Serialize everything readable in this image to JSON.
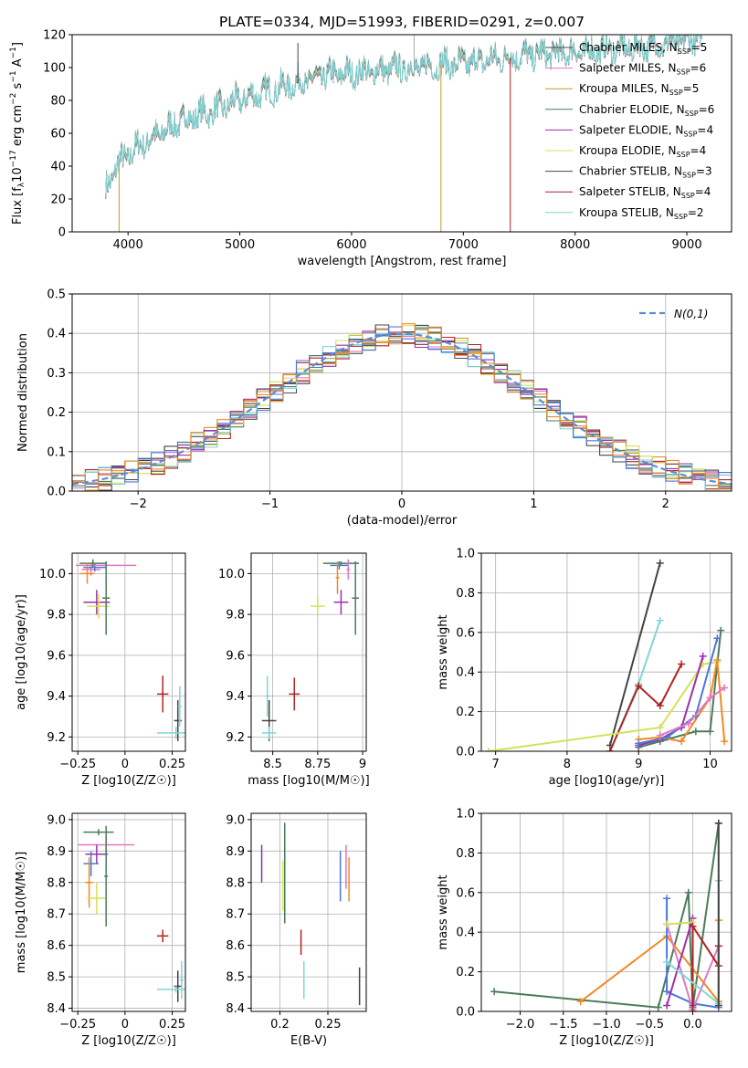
{
  "figure": {
    "title": "PLATE=0334, MJD=51993, FIBERID=0291, z=0.007",
    "spectrum_legend_labels": [
      "Chabrier MILES, N_SSP=5",
      "Salpeter MILES, N_SSP=6",
      "Kroupa MILES, N_SSP=5",
      "Chabrier ELODIE, N_SSP=6",
      "Salpeter ELODIE, N_SSP=4",
      "Kroupa ELODIE, N_SSP=4",
      "Chabrier STELIB, N_SSP=3",
      "Salpeter STELIB, N_SSP=4",
      "Kroupa STELIB, N_SSP=2"
    ],
    "model_colors": [
      "#4c4c4c",
      "#e377c2",
      "#c49a2a",
      "#4a7c59",
      "#9b2fae",
      "#d4e157",
      "#444444",
      "#b22222",
      "#7fd6d6"
    ]
  },
  "chart_data": [
    {
      "id": "spectrum",
      "type": "line",
      "xlabel": "wavelength [Angstrom, rest frame]",
      "ylabel": "Flux [f_λ 10^-17 erg cm^-2 s^-1 A^-1]",
      "xlim": [
        3500,
        9400
      ],
      "ylim": [
        0,
        120
      ],
      "xticks": [
        4000,
        5000,
        6000,
        7000,
        8000,
        9000
      ],
      "yticks": [
        0,
        20,
        40,
        60,
        80,
        100,
        120
      ],
      "grid": false,
      "legend": "top-right",
      "series_shape": {
        "x": [
          3800,
          3900,
          4100,
          4300,
          4500,
          4800,
          5000,
          5200,
          5500,
          5800,
          6000,
          6300,
          6600,
          7000,
          7400,
          7800,
          8200,
          8600,
          9000,
          9100
        ],
        "y": [
          25,
          40,
          52,
          60,
          68,
          74,
          80,
          84,
          90,
          95,
          96,
          98,
          100,
          102,
          106,
          108,
          110,
          112,
          116,
          118
        ]
      }
    },
    {
      "id": "residuals",
      "type": "histogram",
      "xlabel": "(data-model)/error",
      "ylabel": "Normed distribution",
      "xlim": [
        -2.5,
        2.5
      ],
      "ylim": [
        0,
        0.5
      ],
      "xticks": [
        -2,
        -1,
        0,
        1,
        2
      ],
      "yticks": [
        0.0,
        0.1,
        0.2,
        0.3,
        0.4,
        0.5
      ],
      "grid": true,
      "legend": "top-right",
      "reference_curve": "N(0,1)",
      "bin_width": 0.1
    },
    {
      "id": "age-vs-Z",
      "type": "scatter",
      "xlabel": "Z [log10(Z/Z☉)]",
      "ylabel": "age [log10(age/yr)]",
      "xlim": [
        -0.28,
        0.32
      ],
      "ylim": [
        9.13,
        10.1
      ],
      "xticks": [
        -0.25,
        0.0,
        0.25
      ],
      "yticks": [
        9.2,
        9.4,
        9.6,
        9.8,
        10.0
      ],
      "grid": true,
      "points": [
        {
          "x": -0.18,
          "y": 10.02,
          "xerr": 0.05,
          "yerr": 0.03,
          "c": "#e377c2"
        },
        {
          "x": -0.16,
          "y": 10.03,
          "xerr": 0.06,
          "yerr": 0.02,
          "c": "#4c78d8"
        },
        {
          "x": -0.1,
          "y": 10.04,
          "xerr": 0.16,
          "yerr": 0.02,
          "c": "#e377c2"
        },
        {
          "x": -0.17,
          "y": 10.05,
          "xerr": 0.07,
          "yerr": 0.02,
          "c": "#4a7c59"
        },
        {
          "x": -0.2,
          "y": 10.0,
          "xerr": 0.04,
          "yerr": 0.05,
          "c": "#f08a24"
        },
        {
          "x": -0.15,
          "y": 9.86,
          "xerr": 0.07,
          "yerr": 0.06,
          "c": "#9b2fae"
        },
        {
          "x": -0.14,
          "y": 9.84,
          "xerr": 0.06,
          "yerr": 0.06,
          "c": "#d4e157"
        },
        {
          "x": -0.1,
          "y": 9.88,
          "xerr": 0.02,
          "yerr": 0.18,
          "c": "#4a7c59"
        },
        {
          "x": 0.2,
          "y": 9.41,
          "xerr": 0.03,
          "yerr": 0.09,
          "c": "#b22222"
        },
        {
          "x": 0.28,
          "y": 9.28,
          "xerr": 0.02,
          "yerr": 0.1,
          "c": "#444444"
        },
        {
          "x": 0.27,
          "y": 9.22,
          "xerr": 0.1,
          "yerr": 0.03,
          "c": "#7fd6d6"
        },
        {
          "x": 0.29,
          "y": 9.35,
          "xerr": 0.01,
          "yerr": 0.1,
          "c": "#7fd6d6"
        }
      ]
    },
    {
      "id": "age-vs-mass",
      "type": "scatter",
      "xlabel": "mass [log10(M/M☉)]",
      "ylabel": "",
      "xlim": [
        8.38,
        9.02
      ],
      "ylim": [
        9.13,
        10.1
      ],
      "xticks": [
        8.5,
        8.75,
        9.0
      ],
      "ytick_values": [
        9.2,
        9.4,
        9.6,
        9.8,
        10.0
      ],
      "grid": true,
      "points": [
        {
          "x": 8.88,
          "y": 10.05,
          "xerr": 0.1,
          "yerr": 0.01,
          "c": "#4a7c59"
        },
        {
          "x": 8.87,
          "y": 10.04,
          "xerr": 0.05,
          "yerr": 0.02,
          "c": "#4c78d8"
        },
        {
          "x": 8.92,
          "y": 10.02,
          "xerr": 0.01,
          "yerr": 0.05,
          "c": "#e377c2"
        },
        {
          "x": 8.86,
          "y": 9.98,
          "xerr": 0.01,
          "yerr": 0.08,
          "c": "#f08a24"
        },
        {
          "x": 8.96,
          "y": 9.88,
          "xerr": 0.02,
          "yerr": 0.18,
          "c": "#4a7c59"
        },
        {
          "x": 8.88,
          "y": 9.86,
          "xerr": 0.04,
          "yerr": 0.06,
          "c": "#9b2fae"
        },
        {
          "x": 8.75,
          "y": 9.84,
          "xerr": 0.04,
          "yerr": 0.05,
          "c": "#d4e157"
        },
        {
          "x": 8.62,
          "y": 9.41,
          "xerr": 0.03,
          "yerr": 0.08,
          "c": "#b22222"
        },
        {
          "x": 8.48,
          "y": 9.28,
          "xerr": 0.04,
          "yerr": 0.1,
          "c": "#444444"
        },
        {
          "x": 8.48,
          "y": 9.22,
          "xerr": 0.04,
          "yerr": 0.03,
          "c": "#7fd6d6"
        },
        {
          "x": 8.47,
          "y": 9.4,
          "xerr": 0.01,
          "yerr": 0.1,
          "c": "#7fd6d6"
        }
      ]
    },
    {
      "id": "mass-weight-vs-age",
      "type": "line",
      "xlabel": "age [log10(age/yr)]",
      "ylabel": "mass weight",
      "xlim": [
        6.8,
        10.3
      ],
      "ylim": [
        0,
        1
      ],
      "xticks": [
        7,
        8,
        9,
        10
      ],
      "yticks": [
        0.0,
        0.2,
        0.4,
        0.6,
        0.8,
        1.0
      ],
      "grid": true,
      "series": [
        {
          "c": "#444444",
          "x": [
            8.6,
            9.3
          ],
          "y": [
            0.03,
            0.95
          ]
        },
        {
          "c": "#7fd6d6",
          "x": [
            8.6,
            9.0,
            9.3
          ],
          "y": [
            0.0,
            0.34,
            0.66
          ]
        },
        {
          "c": "#b22222",
          "x": [
            8.6,
            9.0,
            9.3,
            9.6
          ],
          "y": [
            0.0,
            0.33,
            0.23,
            0.44
          ]
        },
        {
          "c": "#d4e157",
          "x": [
            6.9,
            9.3,
            9.9,
            10.1
          ],
          "y": [
            0.0,
            0.12,
            0.44,
            0.45
          ]
        },
        {
          "c": "#4a7c59",
          "x": [
            9.0,
            9.3,
            9.8,
            10.0,
            10.15
          ],
          "y": [
            0.02,
            0.05,
            0.1,
            0.1,
            0.61
          ]
        },
        {
          "c": "#9b2fae",
          "x": [
            9.0,
            9.3,
            9.6,
            9.9
          ],
          "y": [
            0.03,
            0.06,
            0.12,
            0.48
          ]
        },
        {
          "c": "#f08a24",
          "x": [
            9.0,
            9.3,
            9.6,
            10.0,
            10.1,
            10.2
          ],
          "y": [
            0.06,
            0.07,
            0.05,
            0.27,
            0.46,
            0.05
          ]
        },
        {
          "c": "#4c78d8",
          "x": [
            9.0,
            9.4,
            9.8,
            10.1
          ],
          "y": [
            0.04,
            0.07,
            0.18,
            0.57
          ]
        },
        {
          "c": "#e377c2",
          "x": [
            9.3,
            9.7,
            10.0,
            10.2
          ],
          "y": [
            0.08,
            0.14,
            0.27,
            0.32
          ]
        }
      ]
    },
    {
      "id": "mass-vs-Z",
      "type": "scatter",
      "xlabel": "Z [log10(Z/Z☉)]",
      "ylabel": "mass [log10(M/M☉)]",
      "xlim": [
        -0.28,
        0.32
      ],
      "ylim": [
        8.39,
        9.02
      ],
      "xticks": [
        -0.25,
        0.0,
        0.25
      ],
      "yticks": [
        8.4,
        8.5,
        8.6,
        8.7,
        8.8,
        8.9,
        9.0
      ],
      "grid": true,
      "points": [
        {
          "x": -0.14,
          "y": 8.96,
          "xerr": 0.08,
          "yerr": 0.01,
          "c": "#4a7c59"
        },
        {
          "x": -0.1,
          "y": 8.92,
          "xerr": 0.15,
          "yerr": 0.03,
          "c": "#e377c2"
        },
        {
          "x": -0.15,
          "y": 8.89,
          "xerr": 0.06,
          "yerr": 0.03,
          "c": "#9b2fae"
        },
        {
          "x": -0.18,
          "y": 8.86,
          "xerr": 0.04,
          "yerr": 0.04,
          "c": "#4c78d8"
        },
        {
          "x": -0.19,
          "y": 8.8,
          "xerr": 0.02,
          "yerr": 0.08,
          "c": "#f08a24"
        },
        {
          "x": -0.15,
          "y": 8.75,
          "xerr": 0.05,
          "yerr": 0.05,
          "c": "#d4e157"
        },
        {
          "x": -0.1,
          "y": 8.82,
          "xerr": 0.01,
          "yerr": 0.16,
          "c": "#4a7c59"
        },
        {
          "x": 0.2,
          "y": 8.63,
          "xerr": 0.03,
          "yerr": 0.02,
          "c": "#b22222"
        },
        {
          "x": 0.28,
          "y": 8.47,
          "xerr": 0.02,
          "yerr": 0.05,
          "c": "#444444"
        },
        {
          "x": 0.27,
          "y": 8.46,
          "xerr": 0.1,
          "yerr": 0.01,
          "c": "#7fd6d6"
        },
        {
          "x": 0.3,
          "y": 8.49,
          "xerr": 0.01,
          "yerr": 0.06,
          "c": "#7fd6d6"
        }
      ]
    },
    {
      "id": "mass-vs-EBV",
      "type": "scatter",
      "xlabel": "E(B-V)",
      "ylabel": "",
      "xlim": [
        0.17,
        0.29
      ],
      "ylim": [
        8.39,
        9.02
      ],
      "xticks": [
        0.2,
        0.25
      ],
      "ytick_values": [
        8.4,
        8.5,
        8.6,
        8.7,
        8.8,
        8.9,
        9.0
      ],
      "grid": true,
      "points": [
        {
          "x": 0.181,
          "y": 8.86,
          "yerr": 0.06,
          "c": "#9b2fae"
        },
        {
          "x": 0.203,
          "y": 8.79,
          "yerr": 0.08,
          "c": "#d4e157"
        },
        {
          "x": 0.205,
          "y": 8.83,
          "yerr": 0.16,
          "c": "#4a7c59"
        },
        {
          "x": 0.222,
          "y": 8.61,
          "yerr": 0.04,
          "c": "#b22222"
        },
        {
          "x": 0.225,
          "y": 8.49,
          "yerr": 0.06,
          "c": "#7fd6d6"
        },
        {
          "x": 0.263,
          "y": 8.82,
          "yerr": 0.08,
          "c": "#4c78d8"
        },
        {
          "x": 0.269,
          "y": 8.85,
          "yerr": 0.07,
          "c": "#e377c2"
        },
        {
          "x": 0.272,
          "y": 8.81,
          "yerr": 0.07,
          "c": "#f08a24"
        },
        {
          "x": 0.283,
          "y": 8.47,
          "yerr": 0.06,
          "c": "#444444"
        }
      ]
    },
    {
      "id": "mass-weight-vs-Z",
      "type": "line",
      "xlabel": "Z [log10(Z/Z☉)]",
      "ylabel": "mass weight",
      "xlim": [
        -2.45,
        0.45
      ],
      "ylim": [
        0,
        1
      ],
      "xticks": [
        -2.0,
        -1.5,
        -1.0,
        -0.5,
        0.0
      ],
      "yticks": [
        0.0,
        0.2,
        0.4,
        0.6,
        0.8,
        1.0
      ],
      "grid": true,
      "series": [
        {
          "c": "#4a7c59",
          "x": [
            -2.3,
            -0.4,
            -0.05,
            0.0,
            0.3
          ],
          "y": [
            0.1,
            0.02,
            0.6,
            0.02,
            0.95
          ]
        },
        {
          "c": "#f08a24",
          "x": [
            -1.3,
            -0.3,
            0.3,
            0.3
          ],
          "y": [
            0.05,
            0.38,
            0.05,
            0.46
          ]
        },
        {
          "c": "#4c78d8",
          "x": [
            -0.3,
            -0.3,
            0.0,
            0.3
          ],
          "y": [
            0.57,
            0.1,
            0.04,
            0.02
          ]
        },
        {
          "c": "#e377c2",
          "x": [
            -0.3,
            0.0,
            0.3
          ],
          "y": [
            0.44,
            0.01,
            0.33
          ]
        },
        {
          "c": "#9b2fae",
          "x": [
            -0.3,
            0.0,
            0.0
          ],
          "y": [
            0.03,
            0.47,
            0.03
          ]
        },
        {
          "c": "#d4e157",
          "x": [
            -0.3,
            0.0,
            0.0
          ],
          "y": [
            0.44,
            0.45,
            0.12
          ]
        },
        {
          "c": "#b22222",
          "x": [
            0.0,
            0.0,
            0.3,
            0.3
          ],
          "y": [
            0.0,
            0.43,
            0.23,
            0.33
          ]
        },
        {
          "c": "#7fd6d6",
          "x": [
            -0.3,
            0.3,
            0.3
          ],
          "y": [
            0.25,
            0.04,
            0.66
          ]
        },
        {
          "c": "#444444",
          "x": [
            0.3,
            0.3
          ],
          "y": [
            0.03,
            0.95
          ]
        }
      ]
    }
  ],
  "legend2": {
    "label": "N(0,1)",
    "color": "#5b8ed6"
  }
}
